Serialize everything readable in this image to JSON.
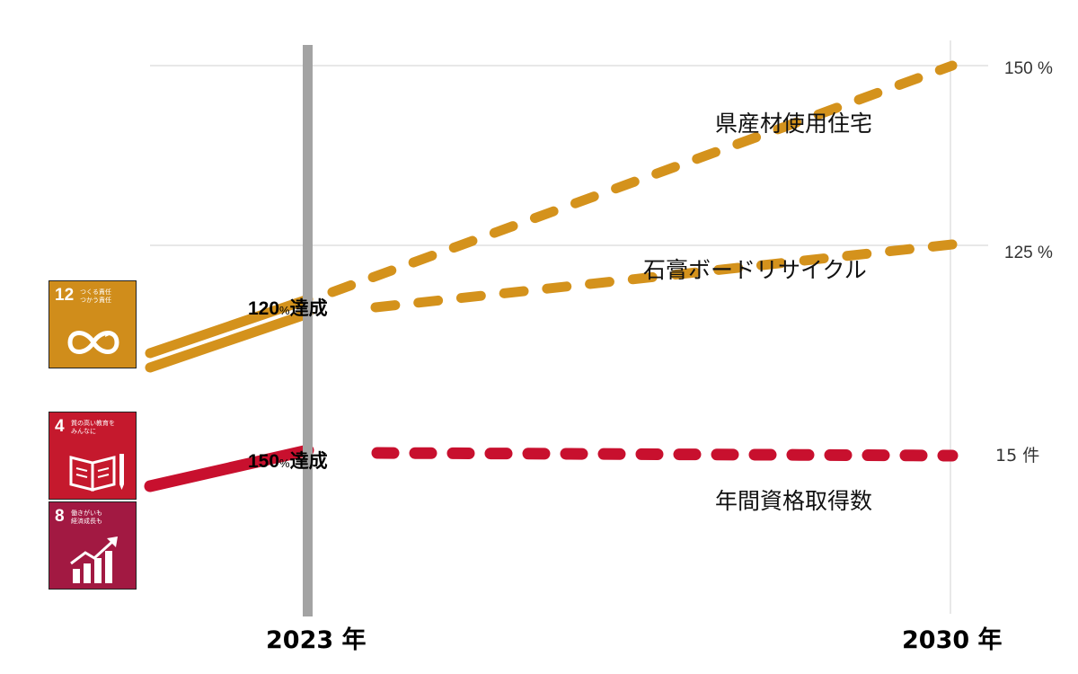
{
  "chart_data": {
    "type": "line",
    "x_categories": [
      "2023 年",
      "2030 年"
    ],
    "right_axis_ticks": [
      "150 %",
      "125 %",
      "15 件"
    ],
    "series": [
      {
        "name": "県産材使用住宅",
        "color": "#D4921C",
        "history_end_value": "120%",
        "target_value": "150%",
        "achievement_label": "120% 達成"
      },
      {
        "name": "石膏ボードリサイクル",
        "color": "#D4921C",
        "history_end_value": "120%",
        "target_value": "125%",
        "achievement_label": "120% 達成"
      },
      {
        "name": "年間資格取得数",
        "color": "#C8102E",
        "history_end_value": "150%",
        "target_value": "15件",
        "achievement_label": "150% 達成"
      }
    ],
    "annotations": [
      {
        "number": "120",
        "unit": "%",
        "text": "達成"
      },
      {
        "number": "150",
        "unit": "%",
        "text": "達成"
      }
    ],
    "grid": "horizontal",
    "legend": "none"
  },
  "sdg_icons": [
    {
      "number": "12",
      "text": "つくる責任\nつかう責任",
      "color": "#D08D1B",
      "icon": "infinity-icon"
    },
    {
      "number": "4",
      "text": "質の高い教育を\nみんなに",
      "color": "#C5192D",
      "icon": "book-icon"
    },
    {
      "number": "8",
      "text": "働きがいも\n経済成長も",
      "color": "#A21942",
      "icon": "growth-chart-icon"
    }
  ]
}
